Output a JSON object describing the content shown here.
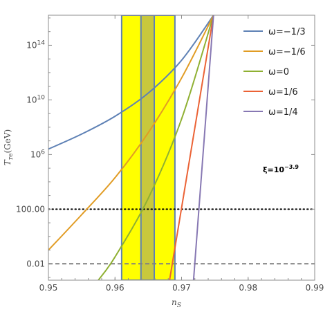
{
  "chart_data": {
    "type": "line",
    "x_label_main": "n",
    "x_label_sub": "S",
    "y_label_main": "T",
    "y_label_sub": "re",
    "y_label_unit": "(GeV)",
    "xlim": [
      0.95,
      0.99
    ],
    "ylim_log10": [
      -3.2,
      16.2
    ],
    "x_ticks": [
      {
        "value": 0.95,
        "label": "0.95"
      },
      {
        "value": 0.96,
        "label": "0.96"
      },
      {
        "value": 0.97,
        "label": "0.97"
      },
      {
        "value": 0.98,
        "label": "0.98"
      },
      {
        "value": 0.99,
        "label": "0.99"
      }
    ],
    "y_ticks": [
      {
        "log10": -2,
        "label": "0.01"
      },
      {
        "log10": 2,
        "label": "100.00"
      },
      {
        "log10": 6,
        "base": "10",
        "exp": "6"
      },
      {
        "log10": 10,
        "base": "10",
        "exp": "10"
      },
      {
        "log10": 14,
        "base": "10",
        "exp": "14"
      }
    ],
    "bands": [
      {
        "x": [
          0.961,
          0.969
        ],
        "color": "#ffff00"
      },
      {
        "x": [
          0.9639,
          0.9659
        ],
        "color": "#c8c83c"
      }
    ],
    "hlines": [
      {
        "log10": 2,
        "style": "dotted",
        "color": "#000000"
      },
      {
        "log10": -2,
        "style": "dashed",
        "color": "#808080"
      }
    ],
    "series": [
      {
        "name": "ω=−1/3",
        "color": "#5e81b5",
        "points": [
          [
            0.95,
            6.4
          ],
          [
            0.955,
            7.5
          ],
          [
            0.96,
            8.8
          ],
          [
            0.965,
            10.5
          ],
          [
            0.97,
            12.9
          ],
          [
            0.9748,
            16.2
          ]
        ]
      },
      {
        "name": "ω=−1/6",
        "color": "#e19c24",
        "points": [
          [
            0.95,
            -1.0
          ],
          [
            0.955,
            1.6
          ],
          [
            0.96,
            4.3
          ],
          [
            0.965,
            7.6
          ],
          [
            0.97,
            11.6
          ],
          [
            0.9748,
            16.2
          ]
        ]
      },
      {
        "name": "ω=0",
        "color": "#8fb032",
        "points": [
          [
            0.9575,
            -3.2
          ],
          [
            0.96,
            -1.5
          ],
          [
            0.965,
            2.8
          ],
          [
            0.97,
            8.6
          ],
          [
            0.9748,
            16.2
          ]
        ]
      },
      {
        "name": "ω=1/6",
        "color": "#eb6235",
        "points": [
          [
            0.9682,
            -3.2
          ],
          [
            0.9748,
            16.2
          ]
        ]
      },
      {
        "name": "ω=1/4",
        "color": "#8778b3",
        "points": [
          [
            0.9718,
            -3.2
          ],
          [
            0.9748,
            16.2
          ]
        ]
      }
    ],
    "annotation": {
      "prefix": "ξ=10",
      "exp": "−3.9"
    }
  }
}
